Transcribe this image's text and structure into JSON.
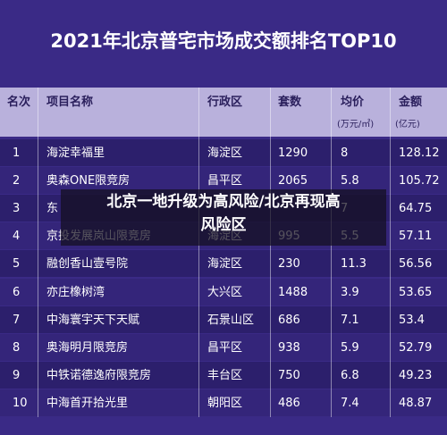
{
  "header": {
    "title": "2021年北京普宅市场成交额排名TOP10"
  },
  "table": {
    "columns": [
      "名次",
      "项目名称",
      "行政区",
      "套数",
      "均价",
      "金额"
    ],
    "units": {
      "4": "(万元/㎡)",
      "5": "(亿元)"
    },
    "rows": [
      [
        1,
        "海淀幸福里",
        "海淀区",
        1290,
        8,
        128.12
      ],
      [
        2,
        "奥森ONE限竞房",
        "昌平区",
        2065,
        5.8,
        105.72
      ],
      [
        3,
        "东",
        null,
        null,
        7,
        64.75
      ],
      [
        4,
        "京投发展岚山限竞房",
        "海淀区",
        995,
        5.5,
        57.11
      ],
      [
        5,
        "融创香山壹号院",
        "海淀区",
        230,
        11.3,
        56.56
      ],
      [
        6,
        "亦庄橡树湾",
        "大兴区",
        1488,
        3.9,
        53.65
      ],
      [
        7,
        "中海寰宇天下天赋",
        "石景山区",
        686,
        7.1,
        53.4
      ],
      [
        8,
        "奥海明月限竞房",
        "昌平区",
        938,
        5.9,
        52.79
      ],
      [
        9,
        "中铁诺德逸府限竞房",
        "丰台区",
        750,
        6.8,
        49.23
      ],
      [
        10,
        "中海首开拾光里",
        "朝阳区",
        486,
        7.4,
        48.87
      ]
    ]
  },
  "caption": {
    "lines": [
      "北京一地升级为高风险/北京再现高",
      "风险区"
    ]
  }
}
